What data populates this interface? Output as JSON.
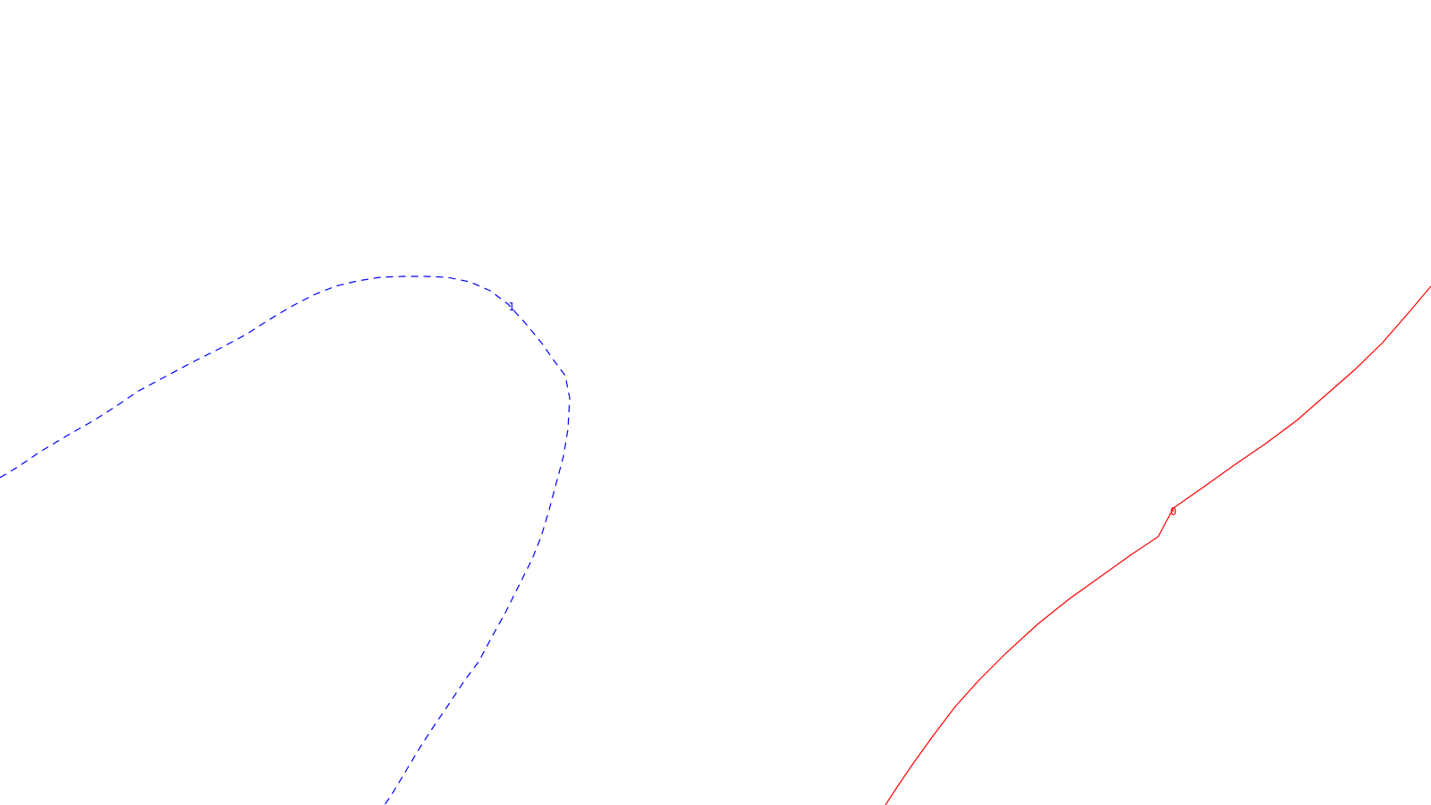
{
  "contours": [
    {
      "level_label": "1",
      "color": "#0000ff",
      "style": "dashed"
    },
    {
      "level_label": "0",
      "color": "#ff0000",
      "style": "solid"
    }
  ]
}
